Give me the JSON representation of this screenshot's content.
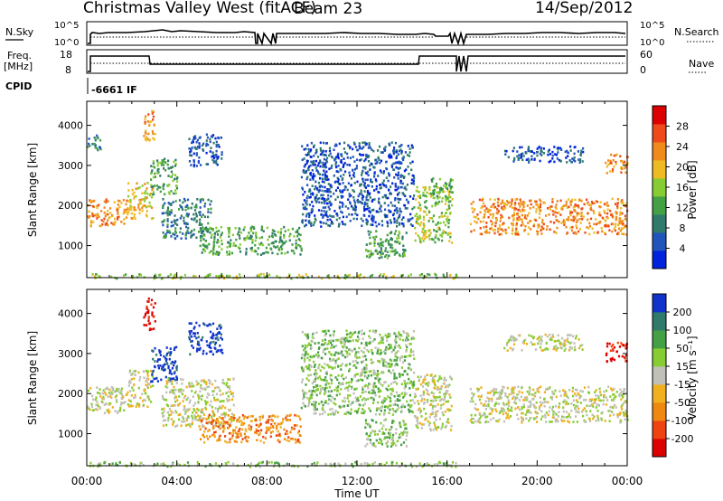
{
  "header": {
    "station": "Christmas Valley West (fitACF)",
    "beam": "Beam 23",
    "date": "14/Sep/2012"
  },
  "params": {
    "nsky_label": "N.Sky",
    "nsky_top": "10^5",
    "nsky_bottom": "10^0",
    "nsearch_label": "N.Search",
    "nsearch_top": "10^5",
    "nsearch_bottom": "10^0",
    "freq_label_1": "Freq.",
    "freq_label_2": "[MHz]",
    "freq_top": "18",
    "freq_bottom": "8",
    "nave_label": "Nave",
    "nave_top": "60",
    "nave_bottom": "0",
    "cpid_label": "CPID",
    "cpid_value": "-6661 IF"
  },
  "colors": {
    "power": [
      "#0022dd",
      "#2255bb",
      "#2f7a6a",
      "#44a044",
      "#88cc33",
      "#eebb22",
      "#f08a1c",
      "#ee4a1a",
      "#dd0000"
    ],
    "velocity": [
      "#dd0000",
      "#ee4411",
      "#ee8811",
      "#f0b020",
      "#c0c0b8",
      "#88cc33",
      "#44a044",
      "#2f7a6a",
      "#1133cc"
    ]
  },
  "chart_data": [
    {
      "type": "heatmap",
      "panel": "power",
      "title": "",
      "xlabel": "",
      "ylabel": "Slant Range [km]",
      "xlim": [
        0,
        24
      ],
      "ylim": [
        200,
        4600
      ],
      "yticks": [
        1000,
        2000,
        3000,
        4000
      ],
      "colorbar": {
        "label": "Power [dB]",
        "ticks": [
          "4",
          "8",
          "12",
          "16",
          "20",
          "24",
          "28"
        ],
        "range": [
          0,
          30
        ]
      },
      "regions": [
        {
          "t0": 0.0,
          "t1": 1.8,
          "r0": 1500,
          "r1": 2200,
          "level": 6
        },
        {
          "t0": 1.8,
          "t1": 2.9,
          "r0": 1700,
          "r1": 2600,
          "level": 5
        },
        {
          "t0": 2.5,
          "t1": 3.0,
          "r0": 3600,
          "r1": 4400,
          "level": 6
        },
        {
          "t0": 0.0,
          "t1": 0.6,
          "r0": 3400,
          "r1": 3800,
          "level": 2
        },
        {
          "t0": 2.8,
          "t1": 4.0,
          "r0": 2300,
          "r1": 3200,
          "level": 3
        },
        {
          "t0": 3.3,
          "t1": 5.5,
          "r0": 1200,
          "r1": 2200,
          "level": 2
        },
        {
          "t0": 5.0,
          "t1": 9.5,
          "r0": 800,
          "r1": 1500,
          "level": 3
        },
        {
          "t0": 4.5,
          "t1": 6.0,
          "r0": 3000,
          "r1": 3800,
          "level": 1
        },
        {
          "t0": 9.5,
          "t1": 14.5,
          "r0": 1500,
          "r1": 3600,
          "level": 1
        },
        {
          "t0": 12.3,
          "t1": 14.2,
          "r0": 700,
          "r1": 1400,
          "level": 3
        },
        {
          "t0": 14.5,
          "t1": 16.2,
          "r0": 1100,
          "r1": 2500,
          "level": 4
        },
        {
          "t0": 15.2,
          "t1": 16.3,
          "r0": 2200,
          "r1": 2700,
          "level": 3
        },
        {
          "t0": 17.0,
          "t1": 24.0,
          "r0": 1300,
          "r1": 2200,
          "level": 6
        },
        {
          "t0": 18.5,
          "t1": 22.0,
          "r0": 3100,
          "r1": 3500,
          "level": 1
        },
        {
          "t0": 23.0,
          "t1": 24.0,
          "r0": 2800,
          "r1": 3300,
          "level": 6
        },
        {
          "t0": 0.0,
          "t1": 16.5,
          "r0": 200,
          "r1": 320,
          "level": 4
        }
      ]
    },
    {
      "type": "heatmap",
      "panel": "velocity",
      "title": "",
      "xlabel": "Time UT",
      "ylabel": "Slant Range [km]",
      "xlim": [
        0,
        24
      ],
      "ylim": [
        200,
        4600
      ],
      "yticks": [
        1000,
        2000,
        3000,
        4000
      ],
      "xticks": [
        "00:00",
        "04:00",
        "08:00",
        "12:00",
        "16:00",
        "20:00",
        "00:00"
      ],
      "colorbar": {
        "label": "Velocity [m s⁻¹]",
        "ticks": [
          "-200",
          "-100",
          "-50",
          "-15",
          "15",
          "50",
          "100",
          "200"
        ]
      },
      "regions": [
        {
          "t0": 0.0,
          "t1": 1.8,
          "r0": 1500,
          "r1": 2200,
          "level": 4
        },
        {
          "t0": 1.8,
          "t1": 2.9,
          "r0": 1700,
          "r1": 2600,
          "level": 4
        },
        {
          "t0": 2.5,
          "t1": 3.0,
          "r0": 3600,
          "r1": 4400,
          "level": 0
        },
        {
          "t0": 2.8,
          "t1": 4.0,
          "r0": 2300,
          "r1": 3200,
          "level": 8
        },
        {
          "t0": 3.3,
          "t1": 6.5,
          "r0": 1200,
          "r1": 2400,
          "level": 4
        },
        {
          "t0": 5.0,
          "t1": 9.5,
          "r0": 800,
          "r1": 1500,
          "level": 2
        },
        {
          "t0": 4.5,
          "t1": 6.0,
          "r0": 3000,
          "r1": 3800,
          "level": 8
        },
        {
          "t0": 9.5,
          "t1": 14.5,
          "r0": 1500,
          "r1": 3600,
          "level": 5
        },
        {
          "t0": 12.3,
          "t1": 14.2,
          "r0": 700,
          "r1": 1400,
          "level": 5
        },
        {
          "t0": 14.5,
          "t1": 16.2,
          "r0": 1100,
          "r1": 2500,
          "level": 4
        },
        {
          "t0": 17.0,
          "t1": 24.0,
          "r0": 1300,
          "r1": 2200,
          "level": 4
        },
        {
          "t0": 18.5,
          "t1": 22.0,
          "r0": 3100,
          "r1": 3500,
          "level": 4
        },
        {
          "t0": 23.0,
          "t1": 24.0,
          "r0": 2800,
          "r1": 3300,
          "level": 0
        },
        {
          "t0": 0.0,
          "t1": 16.5,
          "r0": 200,
          "r1": 320,
          "level": 5
        }
      ]
    }
  ]
}
